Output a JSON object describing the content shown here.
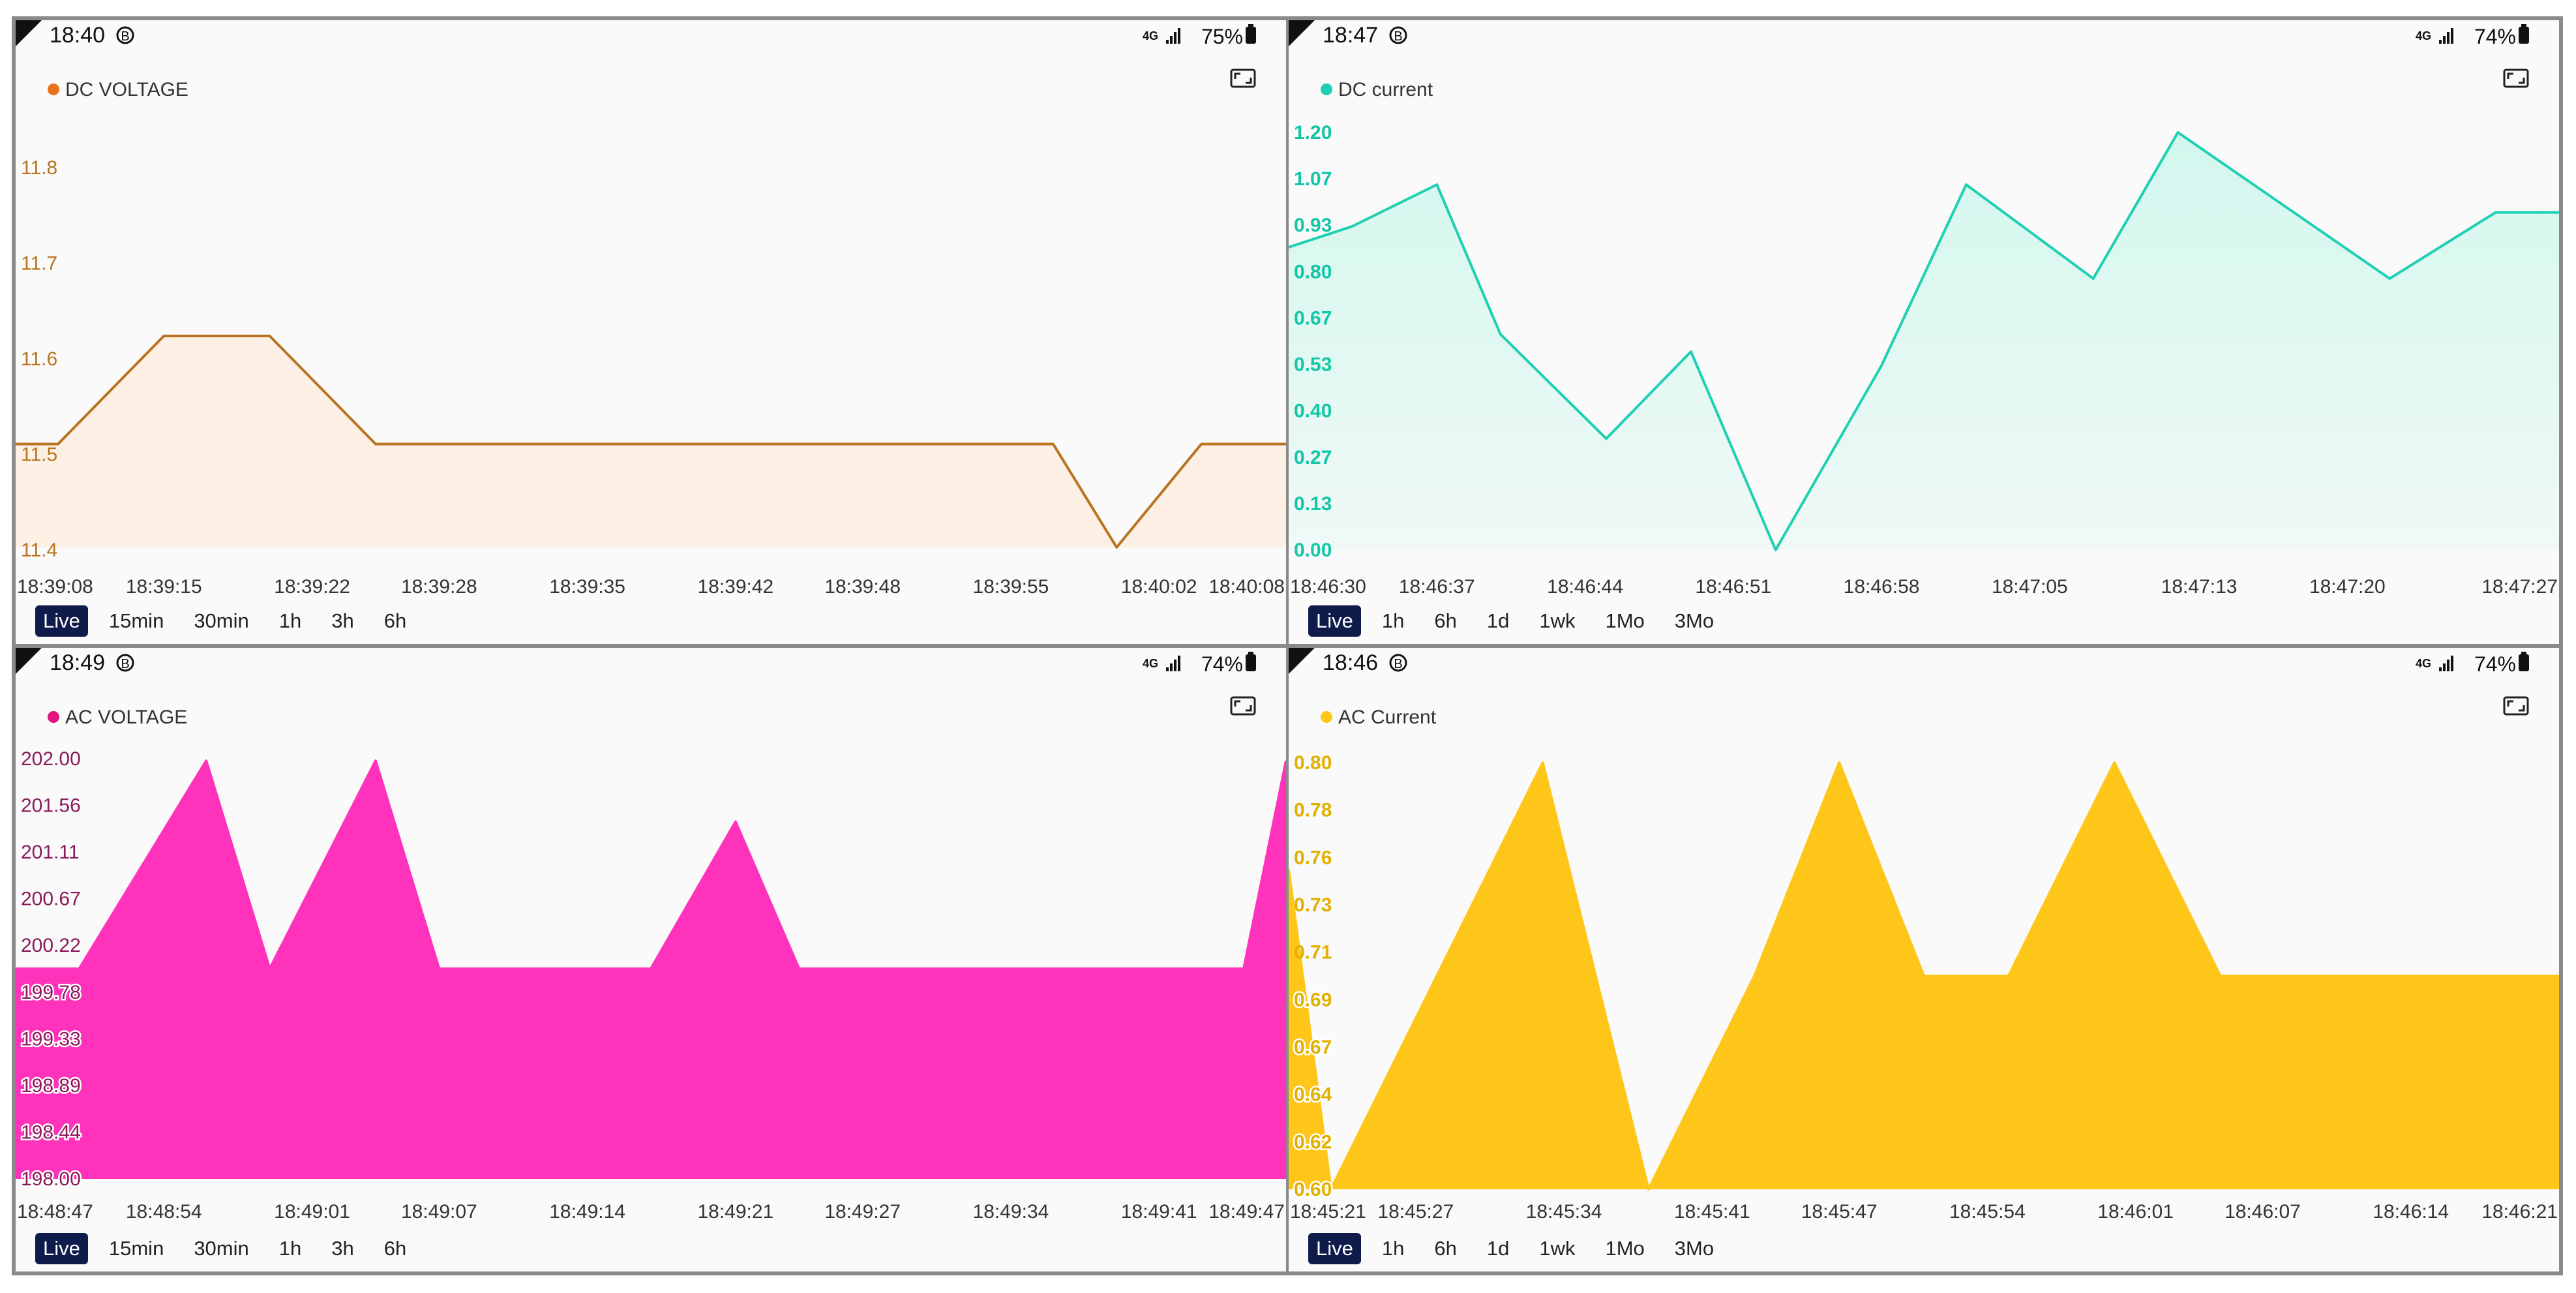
{
  "panels": [
    {
      "status": {
        "time": "18:40",
        "battery": "75%",
        "network": "4G"
      },
      "legend": "DC VOLTAGE",
      "ranges": [
        "Live",
        "15min",
        "30min",
        "1h",
        "3h",
        "6h"
      ],
      "active_range": "Live",
      "colors": {
        "line": "#b87420",
        "fill": "#fdefe3",
        "dot": "#e8741f",
        "tick": "#b87420"
      }
    },
    {
      "status": {
        "time": "18:47",
        "battery": "74%",
        "network": "4G"
      },
      "legend": "DC current",
      "ranges": [
        "Live",
        "1h",
        "6h",
        "1d",
        "1wk",
        "1Mo",
        "3Mo"
      ],
      "active_range": "Live",
      "colors": {
        "line": "#1fcfb4",
        "fill": "#d2f7ee",
        "dot": "#1fcfb4",
        "tick": "#12c7a8"
      }
    },
    {
      "status": {
        "time": "18:49",
        "battery": "74%",
        "network": "4G"
      },
      "legend": "AC VOLTAGE",
      "ranges": [
        "Live",
        "15min",
        "30min",
        "1h",
        "3h",
        "6h"
      ],
      "active_range": "Live",
      "colors": {
        "line": "#ff33bb",
        "fill": "#ff33bb",
        "dot": "#e0157f",
        "tick": "#8a1a5a"
      }
    },
    {
      "status": {
        "time": "18:46",
        "battery": "74%",
        "network": "4G"
      },
      "legend": "AC Current",
      "ranges": [
        "Live",
        "1h",
        "6h",
        "1d",
        "1wk",
        "1Mo",
        "3Mo"
      ],
      "active_range": "Live",
      "colors": {
        "line": "#ffc61a",
        "fill": "#ffc61a",
        "dot": "#ffc61a",
        "tick": "#e2b000"
      }
    }
  ],
  "chart_data": [
    {
      "type": "area",
      "title": "",
      "series": [
        {
          "name": "DC VOLTAGE",
          "values": [
            11.51,
            11.51,
            11.625,
            11.625,
            11.51,
            11.51,
            11.51,
            11.51,
            11.51,
            11.51,
            11.51,
            11.51,
            11.4,
            11.51,
            11.51
          ]
        }
      ],
      "x": [
        "18:39:08",
        "18:39:10",
        "18:39:15",
        "18:39:20",
        "18:39:25",
        "18:39:30",
        "18:39:35",
        "18:39:40",
        "18:39:45",
        "18:39:50",
        "18:39:55",
        "18:39:57",
        "18:40:00",
        "18:40:04",
        "18:40:08"
      ],
      "x_tick_labels": [
        "18:39:08",
        "18:39:15",
        "18:39:22",
        "18:39:28",
        "18:39:35",
        "18:39:42",
        "18:39:48",
        "18:39:55",
        "18:40:02",
        "18:40:08"
      ],
      "y_tick_labels": [
        "11.8",
        "11.7",
        "11.6",
        "11.5",
        "11.4"
      ],
      "ylim": [
        11.4,
        11.8
      ],
      "xlabel": "",
      "ylabel": ""
    },
    {
      "type": "area",
      "title": "",
      "series": [
        {
          "name": "DC current",
          "values": [
            0.87,
            0.93,
            1.05,
            0.62,
            0.32,
            0.57,
            0.0,
            0.53,
            1.05,
            0.78,
            1.2,
            0.99,
            0.78,
            0.97,
            0.97
          ]
        }
      ],
      "x": [
        "18:46:30",
        "18:46:33",
        "18:46:37",
        "18:46:40",
        "18:46:45",
        "18:46:49",
        "18:46:53",
        "18:46:58",
        "18:47:02",
        "18:47:08",
        "18:47:12",
        "18:47:17",
        "18:47:22",
        "18:47:27",
        "18:47:30"
      ],
      "x_tick_labels": [
        "18:46:30",
        "18:46:37",
        "18:46:44",
        "18:46:51",
        "18:46:58",
        "18:47:05",
        "18:47:13",
        "18:47:20",
        "18:47:27"
      ],
      "y_tick_labels": [
        "1.20",
        "1.07",
        "0.93",
        "0.80",
        "0.67",
        "0.53",
        "0.40",
        "0.27",
        "0.13",
        "0.00"
      ],
      "ylim": [
        0.0,
        1.2
      ],
      "xlabel": "",
      "ylabel": ""
    },
    {
      "type": "area",
      "title": "",
      "series": [
        {
          "name": "AC VOLTAGE",
          "values": [
            200.0,
            200.0,
            201.98,
            200.0,
            201.98,
            200.0,
            200.0,
            200.0,
            201.4,
            200.0,
            200.0,
            200.0,
            200.0,
            201.98
          ]
        }
      ],
      "x": [
        "18:48:47",
        "18:48:50",
        "18:48:56",
        "18:48:59",
        "18:49:04",
        "18:49:07",
        "18:49:12",
        "18:49:17",
        "18:49:21",
        "18:49:24",
        "18:49:30",
        "18:49:35",
        "18:49:45",
        "18:49:47"
      ],
      "x_tick_labels": [
        "18:48:47",
        "18:48:54",
        "18:49:01",
        "18:49:07",
        "18:49:14",
        "18:49:21",
        "18:49:27",
        "18:49:34",
        "18:49:41",
        "18:49:47"
      ],
      "y_tick_labels": [
        "202.00",
        "201.56",
        "201.11",
        "200.67",
        "200.22",
        "199.78",
        "199.33",
        "198.89",
        "198.44",
        "198.00"
      ],
      "ylim": [
        198.0,
        202.0
      ],
      "xlabel": "",
      "ylabel": ""
    },
    {
      "type": "area",
      "title": "",
      "series": [
        {
          "name": "AC Current",
          "values": [
            0.75,
            0.6,
            0.7,
            0.8,
            0.6,
            0.7,
            0.8,
            0.7,
            0.7,
            0.8,
            0.7,
            0.7,
            0.7
          ]
        }
      ],
      "x": [
        "18:45:21",
        "18:45:23",
        "18:45:28",
        "18:45:33",
        "18:45:38",
        "18:45:43",
        "18:45:47",
        "18:45:51",
        "18:45:55",
        "18:46:00",
        "18:46:05",
        "18:46:15",
        "18:46:21"
      ],
      "x_tick_labels": [
        "18:45:21",
        "18:45:27",
        "18:45:34",
        "18:45:41",
        "18:45:47",
        "18:45:54",
        "18:46:01",
        "18:46:07",
        "18:46:14",
        "18:46:21"
      ],
      "y_tick_labels": [
        "0.80",
        "0.78",
        "0.76",
        "0.73",
        "0.71",
        "0.69",
        "0.67",
        "0.64",
        "0.62",
        "0.60"
      ],
      "ylim": [
        0.6,
        0.8
      ],
      "xlabel": "",
      "ylabel": ""
    }
  ]
}
